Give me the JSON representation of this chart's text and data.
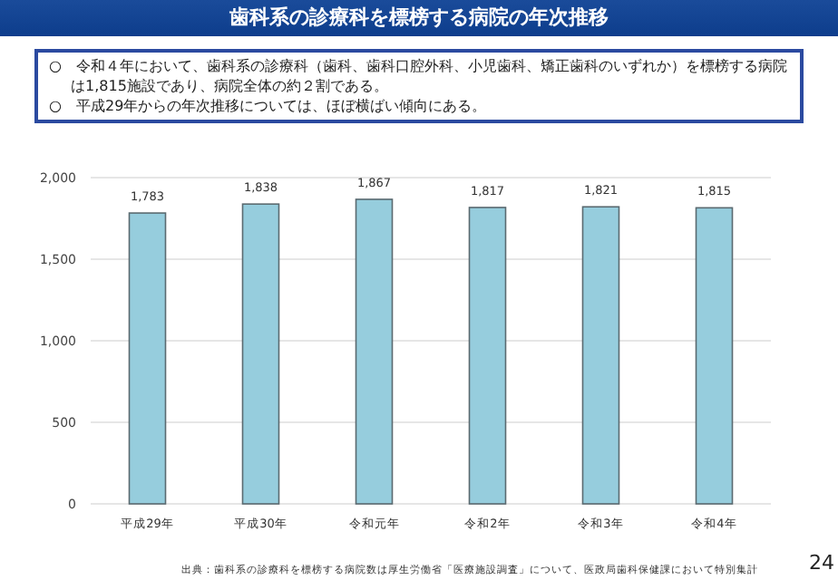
{
  "chart_data": {
    "type": "bar",
    "title": "歯科系の診療科を標榜する病院の年次推移",
    "annotations": [
      "○　令和４年において、歯科系の診療科（歯科、歯科口腔外科、小児歯科、矯正歯科のいずれか）を標榜する病院は1,815施設であり、病院全体の約２割である。",
      "○　平成29年からの年次推移については、ほぼ横ばい傾向にある。",
      "出典：歯科系の診療科を標榜する病院数は厚生労働省「医療施設調査」について、医政局歯科保健課において特別集計",
      "24"
    ],
    "categories": [
      "平成29年",
      "平成30年",
      "令和元年",
      "令和2年",
      "令和3年",
      "令和4年"
    ],
    "values": [
      1783,
      1838,
      1867,
      1817,
      1821,
      1815
    ],
    "color": "#96cddd",
    "ylim": [
      0,
      2000
    ],
    "yticks": [
      {
        "value": 0,
        "label": "0"
      },
      {
        "value": 500,
        "label": "500"
      },
      {
        "value": 1000,
        "label": "1,000"
      },
      {
        "value": 1500,
        "label": "1,500"
      },
      {
        "value": 2000,
        "label": "2,000"
      }
    ],
    "grid": "y",
    "value_labels": [
      "1,783",
      "1,838",
      "1,867",
      "1,817",
      "1,821",
      "1,815"
    ]
  }
}
